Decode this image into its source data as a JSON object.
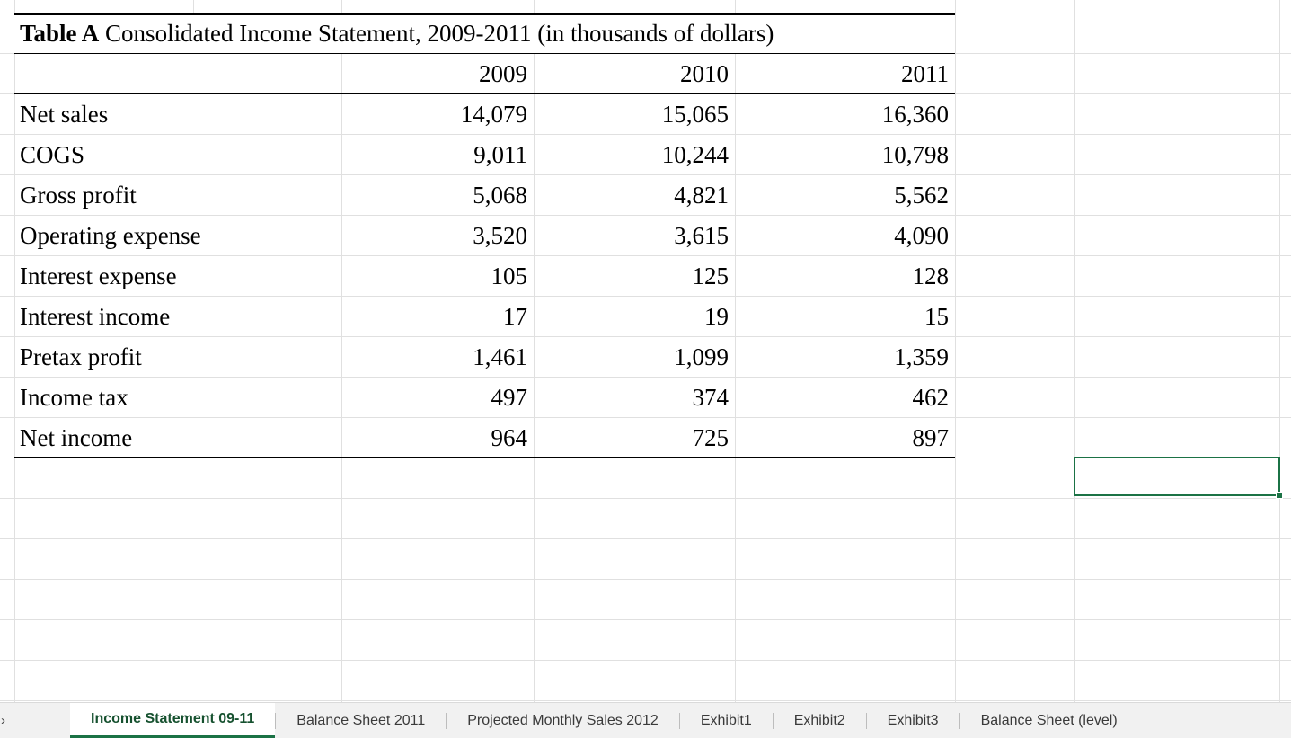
{
  "sheet": {
    "title": {
      "prefix": "Table A",
      "rest": " Consolidated Income Statement, 2009-2011 (in thousands of dollars)"
    },
    "columns": [
      "2009",
      "2010",
      "2011"
    ],
    "rows": [
      {
        "label": "Net sales",
        "values": [
          "14,079",
          "15,065",
          "16,360"
        ]
      },
      {
        "label": "COGS",
        "values": [
          "9,011",
          "10,244",
          "10,798"
        ]
      },
      {
        "label": "Gross profit",
        "values": [
          "5,068",
          "4,821",
          "5,562"
        ]
      },
      {
        "label": "Operating expense",
        "values": [
          "3,520",
          "3,615",
          "4,090"
        ]
      },
      {
        "label": "Interest expense",
        "values": [
          "105",
          "125",
          "128"
        ]
      },
      {
        "label": "Interest income",
        "values": [
          "17",
          "19",
          "15"
        ]
      },
      {
        "label": "Pretax profit",
        "values": [
          "1,461",
          "1,099",
          "1,359"
        ]
      },
      {
        "label": "Income tax",
        "values": [
          "497",
          "374",
          "462"
        ]
      },
      {
        "label": "Net income",
        "values": [
          "964",
          "725",
          "897"
        ]
      }
    ]
  },
  "tabs": {
    "nav_arrow": "›",
    "items": [
      {
        "label": "Income Statement 09-11",
        "active": true
      },
      {
        "label": "Balance Sheet 2011",
        "active": false
      },
      {
        "label": "Projected Monthly Sales 2012",
        "active": false
      },
      {
        "label": "Exhibit1",
        "active": false
      },
      {
        "label": "Exhibit2",
        "active": false
      },
      {
        "label": "Exhibit3",
        "active": false
      },
      {
        "label": "Balance Sheet (level)",
        "active": false
      }
    ]
  },
  "colors": {
    "accent_green": "#1b7245",
    "gridline": "#e0e0e0",
    "tabbar_bg": "#f1f1f1"
  }
}
